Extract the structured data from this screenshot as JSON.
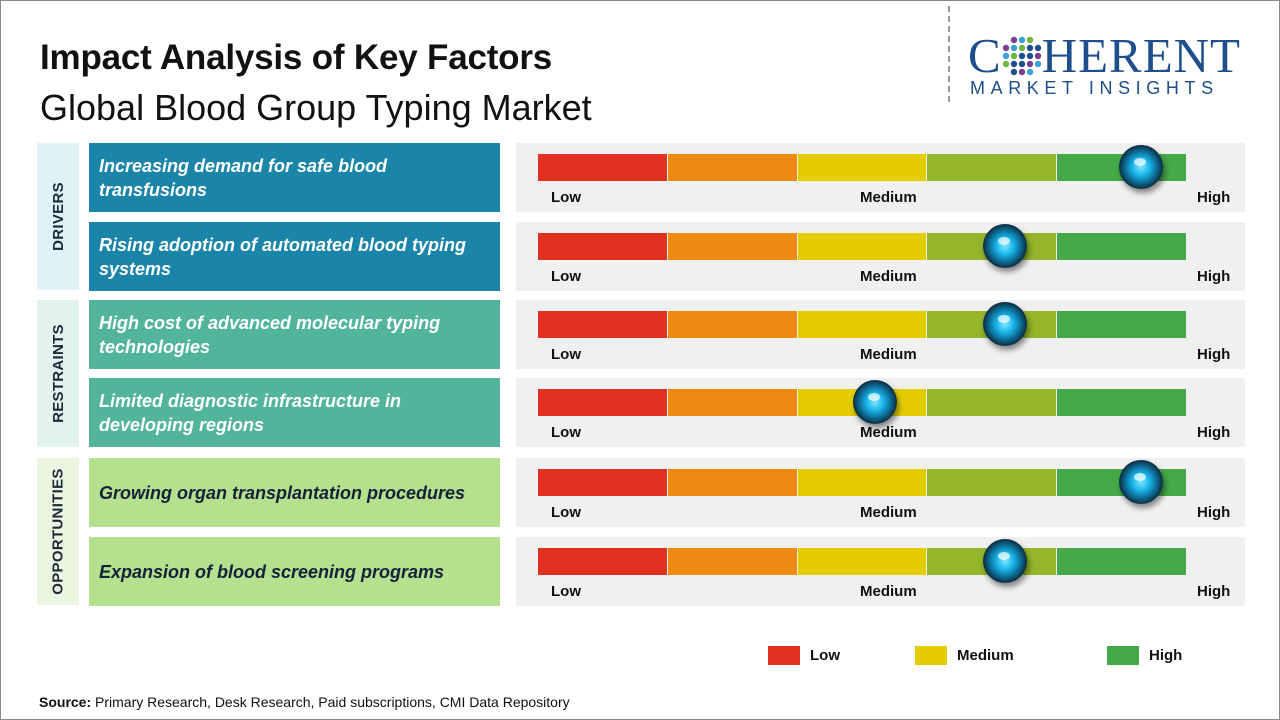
{
  "header": {
    "title": "Impact Analysis of Key Factors",
    "subtitle": "Global Blood Group Typing Market"
  },
  "logo": {
    "line1_a": "C",
    "line1_b": "HERENT",
    "line2": "MARKET INSIGHTS"
  },
  "colors": {
    "low": "#e03020",
    "low_medium": "#ef8a10",
    "medium": "#e4cc00",
    "medium_high": "#94b62a",
    "high": "#45a948",
    "drivers": "#1a85a8",
    "restraints": "#52b49b",
    "opportunities": "#b5e08e"
  },
  "chart_data": {
    "type": "gauge",
    "scale_labels": {
      "low": "Low",
      "medium": "Medium",
      "high": "High"
    },
    "scale_min": 0,
    "scale_max": 1,
    "categories": [
      {
        "name": "DRIVERS",
        "factors": [
          {
            "label": "Increasing demand for safe blood transfusions",
            "impact": 0.93
          },
          {
            "label": "Rising adoption of automated blood typing systems",
            "impact": 0.72
          }
        ]
      },
      {
        "name": "RESTRAINTS",
        "factors": [
          {
            "label": "High cost of advanced molecular typing technologies",
            "impact": 0.72
          },
          {
            "label": "Limited diagnostic infrastructure in developing regions",
            "impact": 0.52
          }
        ]
      },
      {
        "name": "OPPORTUNITIES",
        "factors": [
          {
            "label": "Growing organ transplantation procedures",
            "impact": 0.93
          },
          {
            "label": "Expansion of blood screening programs",
            "impact": 0.72
          }
        ]
      }
    ],
    "legend": [
      {
        "label": "Low",
        "color": "#e03020"
      },
      {
        "label": "Medium",
        "color": "#e4cc00"
      },
      {
        "label": "High",
        "color": "#45a948"
      }
    ]
  },
  "footer": {
    "source_label": "Source:",
    "source_text": "Primary Research, Desk Research, Paid subscriptions, CMI Data Repository"
  }
}
